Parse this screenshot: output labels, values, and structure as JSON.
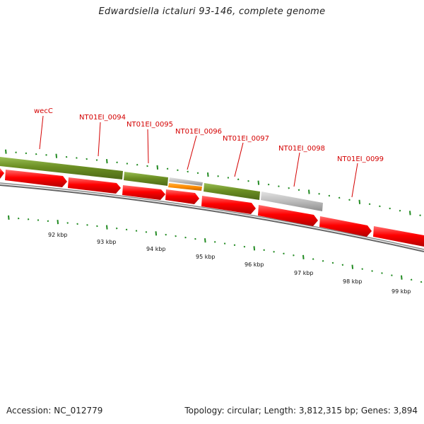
{
  "title": "Edwardsiella ictaluri 93-146, complete genome",
  "accession": "Accession: NC_012779",
  "summary": "Topology: circular; Length: 3,812,315 bp; Genes: 3,894",
  "colors": {
    "forward_gene": "#6b8e23",
    "reverse_gene": "#ff0000",
    "pseudo_gene": "#bbbbbb",
    "rna_gene": "#ff8c00",
    "label": "#d40000",
    "tick": "#228b22",
    "backbone": "#777777"
  },
  "labels": [
    "wecC",
    "NT01EI_0094",
    "NT01EI_0095",
    "NT01EI_0096",
    "NT01EI_0097",
    "NT01EI_0098",
    "NT01EI_0099"
  ],
  "ticks": [
    "92 kbp",
    "93 kbp",
    "94 kbp",
    "95 kbp",
    "96 kbp",
    "97 kbp",
    "98 kbp",
    "99 kbp"
  ]
}
